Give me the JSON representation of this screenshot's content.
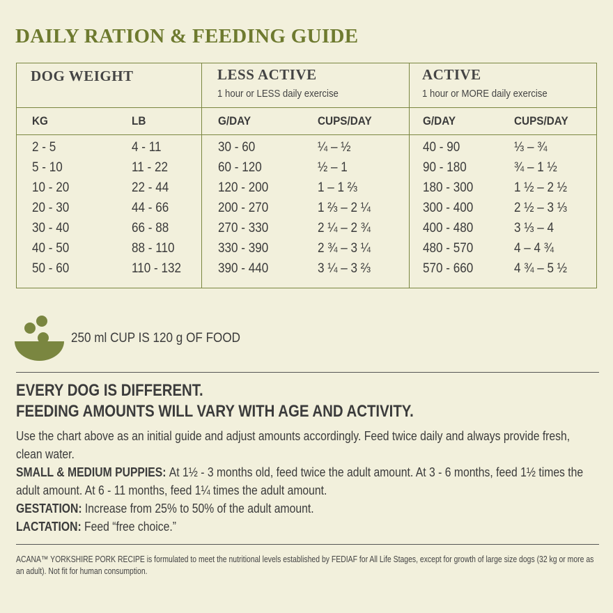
{
  "title": "DAILY RATION & FEEDING GUIDE",
  "table": {
    "groups": [
      {
        "title": "DOG WEIGHT"
      },
      {
        "title": "LESS ACTIVE",
        "subtitle": "1 hour or LESS daily exercise"
      },
      {
        "title": "ACTIVE",
        "subtitle": "1 hour or MORE daily exercise"
      }
    ],
    "columns": [
      "KG",
      "LB",
      "G/DAY",
      "CUPS/DAY",
      "G/DAY",
      "CUPS/DAY"
    ],
    "rows": [
      [
        "2 - 5",
        "4 - 11",
        "30 - 60",
        "¼ – ½",
        "40 - 90",
        "⅓ – ¾"
      ],
      [
        "5 - 10",
        "11 - 22",
        "60 - 120",
        "½ – 1",
        "90 - 180",
        "¾ – 1 ½"
      ],
      [
        "10 - 20",
        "22 - 44",
        "120 - 200",
        "1 – 1 ⅔",
        "180 - 300",
        "1 ½ – 2 ½"
      ],
      [
        "20 - 30",
        "44 - 66",
        "200 - 270",
        "1 ⅔ – 2 ¼",
        "300 - 400",
        "2 ½ – 3 ⅓"
      ],
      [
        "30 - 40",
        "66 - 88",
        "270 - 330",
        "2 ¼ – 2 ¾",
        "400 - 480",
        "3 ⅓ – 4"
      ],
      [
        "40 - 50",
        "88 - 110",
        "330 - 390",
        "2 ¾ – 3 ¼",
        "480 - 570",
        "4 – 4 ¾"
      ],
      [
        "50 - 60",
        "110 - 132",
        "390 - 440",
        "3 ¼ – 3 ⅔",
        "570 - 660",
        "4 ¾ – 5 ½"
      ]
    ]
  },
  "cup_note": "250 ml CUP IS 120 g OF FOOD",
  "headline": [
    "EVERY DOG IS DIFFERENT.",
    "FEEDING AMOUNTS WILL VARY WITH AGE AND ACTIVITY."
  ],
  "intro": "Use the chart above as an initial guide and adjust amounts accordingly. Feed twice daily and always provide fresh, clean water.",
  "notes": [
    {
      "label": "SMALL & MEDIUM PUPPIES:",
      "text": "At 1½ - 3 months old, feed twice the adult amount. At 3 - 6 months, feed 1½ times the adult amount. At 6 - 11 months, feed 1¼ times the adult amount."
    },
    {
      "label": "GESTATION:",
      "text": "Increase from 25% to 50% of the adult amount."
    },
    {
      "label": "LACTATION:",
      "text": "Feed “free choice.”"
    }
  ],
  "footer": "ACANA™ YORKSHIRE PORK RECIPE is formulated to meet the nutritional levels established by FEDIAF for All Life Stages, except for growth of large size dogs (32 kg or more as an adult). Not fit for human consumption."
}
